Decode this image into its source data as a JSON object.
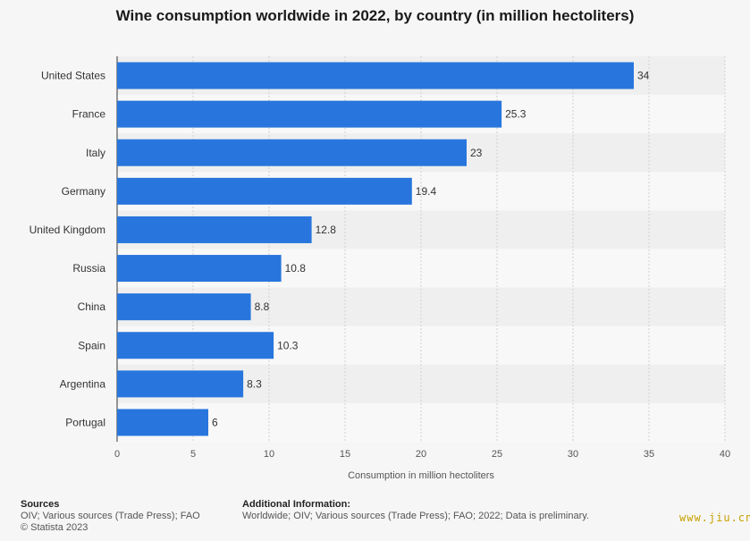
{
  "chart_data": {
    "type": "bar",
    "orientation": "horizontal",
    "title": "Wine consumption worldwide in 2022, by country (in million hectoliters)",
    "categories": [
      "United States",
      "France",
      "Italy",
      "Germany",
      "United Kingdom",
      "Russia",
      "China",
      "Spain",
      "Argentina",
      "Portugal"
    ],
    "values": [
      34,
      25.3,
      23,
      19.4,
      12.8,
      10.8,
      8.8,
      10.3,
      8.3,
      6
    ],
    "value_labels": [
      "34",
      "25.3",
      "23",
      "19.4",
      "12.8",
      "10.8",
      "8.8",
      "10.3",
      "8.3",
      "6"
    ],
    "xlabel": "Consumption in million hectoliters",
    "xlim": [
      0,
      40
    ],
    "xticks": [
      0,
      5,
      10,
      15,
      20,
      25,
      30,
      35,
      40
    ],
    "grid": true,
    "bar_color": "#2876dd"
  },
  "footer": {
    "sources_title": "Sources",
    "sources_text": "OIV; Various sources (Trade Press); FAO",
    "copyright": "© Statista 2023",
    "additional_title": "Additional Information:",
    "additional_text": "Worldwide; OIV; Various sources (Trade Press); FAO; 2022; Data is preliminary."
  },
  "watermark": "www.jiu.cn"
}
